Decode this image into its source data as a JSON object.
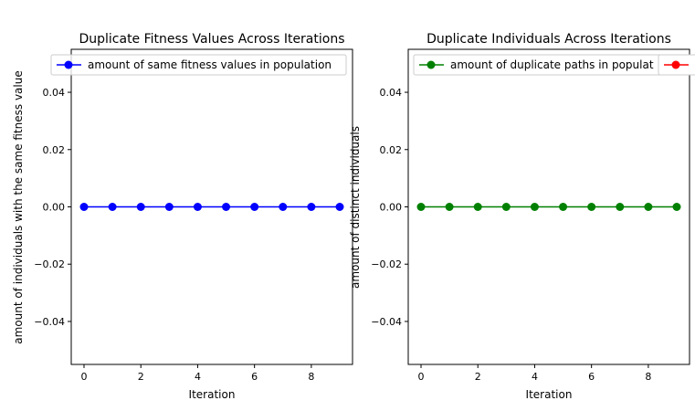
{
  "chart_data": [
    {
      "type": "line",
      "title": "Duplicate Fitness Values Across Iterations",
      "xlabel": "Iteration",
      "ylabel": "amount of individuals with the same fitness value",
      "xlim": [
        -0.45,
        9.45
      ],
      "ylim": [
        -0.055,
        0.055
      ],
      "x_ticks": [
        0,
        2,
        4,
        6,
        8
      ],
      "x_tick_labels": [
        "0",
        "2",
        "4",
        "6",
        "8"
      ],
      "y_ticks": [
        -0.04,
        -0.02,
        0.0,
        0.02,
        0.04
      ],
      "y_tick_labels": [
        "−0.04",
        "−0.02",
        "0.00",
        "0.02",
        "0.04"
      ],
      "grid": false,
      "legend_position": "top-right",
      "series": [
        {
          "name": "amount of same fitness values in population",
          "color": "#0000ff",
          "marker": "circle",
          "x": [
            0,
            1,
            2,
            3,
            4,
            5,
            6,
            7,
            8,
            9
          ],
          "values": [
            0,
            0,
            0,
            0,
            0,
            0,
            0,
            0,
            0,
            0
          ]
        }
      ]
    },
    {
      "type": "line",
      "title": "Duplicate Individuals Across Iterations",
      "xlabel": "Iteration",
      "ylabel": "amount of distinct individuals",
      "xlim": [
        -0.45,
        9.45
      ],
      "ylim": [
        -0.055,
        0.055
      ],
      "x_ticks": [
        0,
        2,
        4,
        6,
        8
      ],
      "x_tick_labels": [
        "0",
        "2",
        "4",
        "6",
        "8"
      ],
      "y_ticks": [
        -0.04,
        -0.02,
        0.0,
        0.02,
        0.04
      ],
      "y_tick_labels": [
        "−0.04",
        "−0.02",
        "0.00",
        "0.02",
        "0.04"
      ],
      "grid": false,
      "legend_position": "top-right",
      "series": [
        {
          "name": "amount of duplicate paths in population",
          "legend_label_visible": "amount of duplicate paths in populat",
          "color": "#008000",
          "marker": "circle",
          "x": [
            0,
            1,
            2,
            3,
            4,
            5,
            6,
            7,
            8,
            9
          ],
          "values": [
            0,
            0,
            0,
            0,
            0,
            0,
            0,
            0,
            0,
            0
          ]
        },
        {
          "name": "",
          "color": "#ff0000",
          "marker": "circle",
          "x": [],
          "values": []
        }
      ]
    }
  ]
}
